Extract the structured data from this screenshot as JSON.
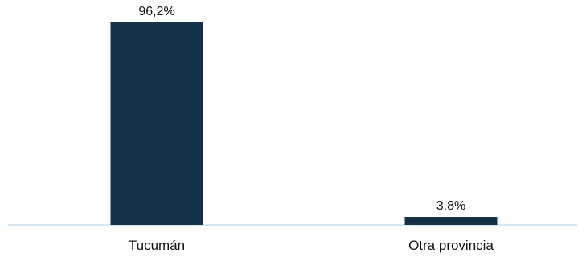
{
  "chart_data": {
    "type": "bar",
    "categories": [
      "Tucumán",
      "Otra provincia"
    ],
    "values": [
      96.2,
      3.8
    ],
    "value_labels": [
      "96,2%",
      "3,8%"
    ],
    "unit": "%",
    "title": "",
    "xlabel": "",
    "ylabel": "",
    "ylim": [
      0,
      100
    ],
    "grid": false,
    "legend": "none",
    "colors": {
      "bar": "#14314a",
      "baseline": "#c9dfee",
      "text": "#111111"
    }
  }
}
